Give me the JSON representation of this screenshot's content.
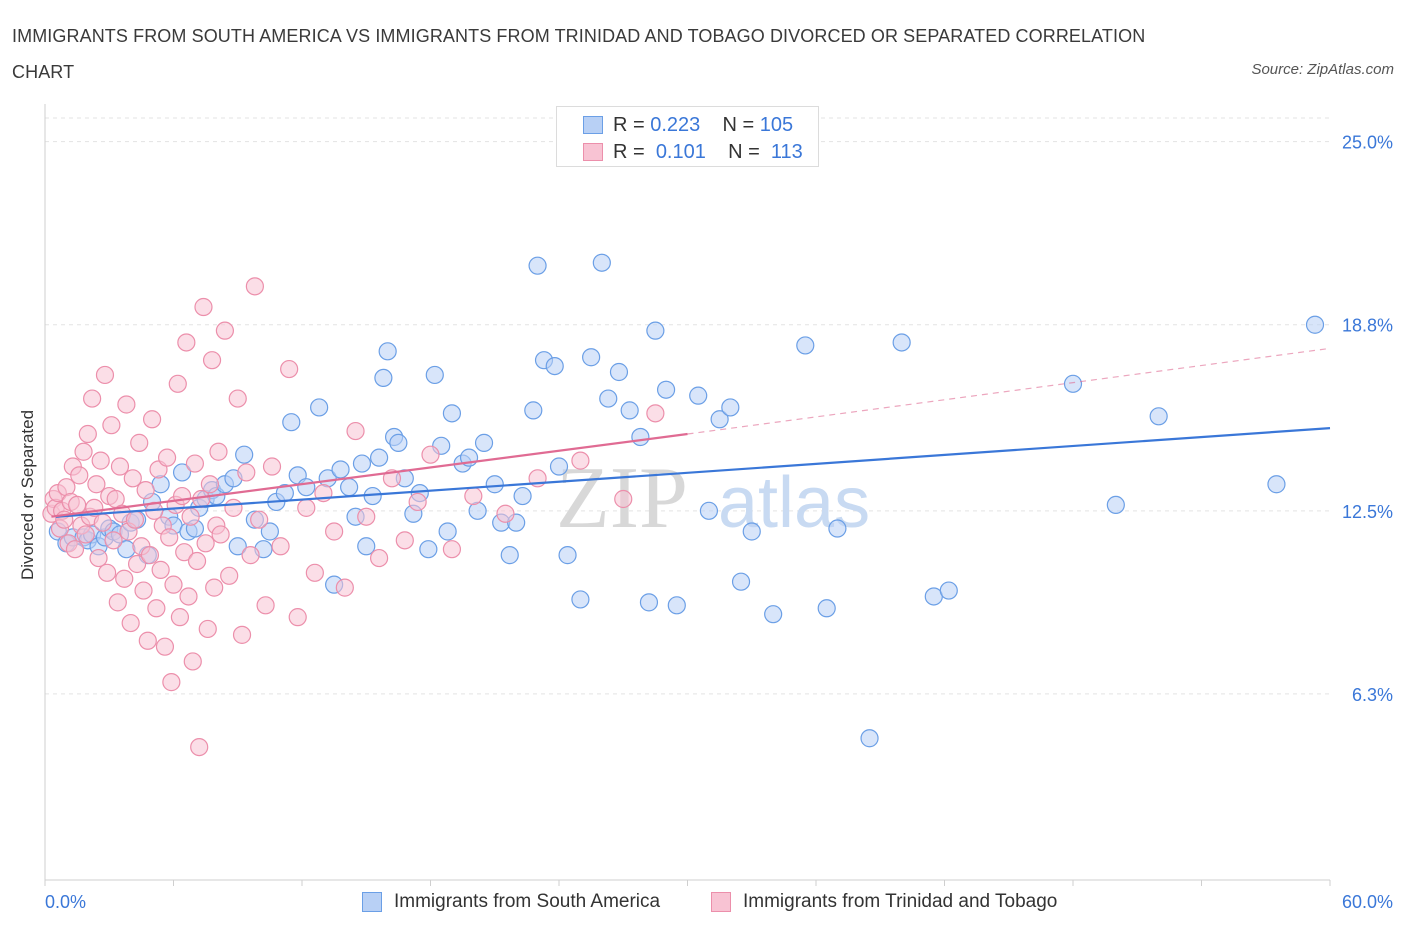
{
  "title": "IMMIGRANTS FROM SOUTH AMERICA VS IMMIGRANTS FROM TRINIDAD AND TOBAGO DIVORCED OR SEPARATED CORRELATION CHART",
  "source": "Source: ZipAtlas.com",
  "watermark": {
    "zip": "ZIP",
    "atlas": "atlas"
  },
  "legend": {
    "r_label": "R =",
    "n_label": "N =",
    "rows": [
      {
        "r": "0.223",
        "n": "105",
        "fill": "#b8d0f5",
        "stroke": "#6b9fe6"
      },
      {
        "r": "0.101",
        "n": "113",
        "fill": "#f8c3d3",
        "stroke": "#ec8fab"
      }
    ]
  },
  "chart_data": {
    "type": "scatter",
    "xlabel": "",
    "ylabel": "Divorced or Separated",
    "xlim": [
      0,
      60
    ],
    "ylim": [
      0,
      25.8
    ],
    "x_tick_labels": [
      {
        "value": 0,
        "label": "0.0%"
      },
      {
        "value": 60,
        "label": "60.0%"
      }
    ],
    "y_tick_labels": [
      {
        "value": 6.3,
        "label": "6.3%"
      },
      {
        "value": 12.5,
        "label": "12.5%"
      },
      {
        "value": 18.8,
        "label": "18.8%"
      },
      {
        "value": 25.0,
        "label": "25.0%"
      }
    ],
    "x_minor_ticks": [
      0,
      6,
      12,
      18,
      24,
      30,
      36,
      42,
      48,
      54,
      60
    ],
    "grid": true,
    "legend_position": "top-center",
    "series": [
      {
        "name": "Immigrants from South America",
        "color": "#3a77d8",
        "fill": "#b8d0f5",
        "stroke": "#6b9fe6",
        "trend": {
          "x0": 0.5,
          "y0": 12.3,
          "x1": 60,
          "y1": 15.3
        },
        "points": [
          [
            0.6,
            11.8
          ],
          [
            1.0,
            11.4
          ],
          [
            1.3,
            11.6
          ],
          [
            1.8,
            11.6
          ],
          [
            2.0,
            11.5
          ],
          [
            2.2,
            11.7
          ],
          [
            2.5,
            11.3
          ],
          [
            2.8,
            11.6
          ],
          [
            3.0,
            11.9
          ],
          [
            3.2,
            11.8
          ],
          [
            3.5,
            11.7
          ],
          [
            3.8,
            11.2
          ],
          [
            4.0,
            12.1
          ],
          [
            4.3,
            12.2
          ],
          [
            4.8,
            11.0
          ],
          [
            5.0,
            12.8
          ],
          [
            5.4,
            13.4
          ],
          [
            5.8,
            12.3
          ],
          [
            6.0,
            12.0
          ],
          [
            6.4,
            13.8
          ],
          [
            6.7,
            11.8
          ],
          [
            7.0,
            11.9
          ],
          [
            7.2,
            12.6
          ],
          [
            7.5,
            12.9
          ],
          [
            7.8,
            13.2
          ],
          [
            8.0,
            13.0
          ],
          [
            8.4,
            13.4
          ],
          [
            8.8,
            13.6
          ],
          [
            9.0,
            11.3
          ],
          [
            9.3,
            14.4
          ],
          [
            9.8,
            12.2
          ],
          [
            10.2,
            11.2
          ],
          [
            10.5,
            11.8
          ],
          [
            10.8,
            12.8
          ],
          [
            11.2,
            13.1
          ],
          [
            11.5,
            15.5
          ],
          [
            11.8,
            13.7
          ],
          [
            12.2,
            13.3
          ],
          [
            12.8,
            16.0
          ],
          [
            13.2,
            13.6
          ],
          [
            13.5,
            10.0
          ],
          [
            13.8,
            13.9
          ],
          [
            14.2,
            13.3
          ],
          [
            14.5,
            12.3
          ],
          [
            14.8,
            14.1
          ],
          [
            15.0,
            11.3
          ],
          [
            15.3,
            13.0
          ],
          [
            15.6,
            14.3
          ],
          [
            15.8,
            17.0
          ],
          [
            16.0,
            17.9
          ],
          [
            16.3,
            15.0
          ],
          [
            16.5,
            14.8
          ],
          [
            16.8,
            13.6
          ],
          [
            17.2,
            12.4
          ],
          [
            17.5,
            13.1
          ],
          [
            17.9,
            11.2
          ],
          [
            18.2,
            17.1
          ],
          [
            18.5,
            14.7
          ],
          [
            18.8,
            11.8
          ],
          [
            19.0,
            15.8
          ],
          [
            19.5,
            14.1
          ],
          [
            19.8,
            14.3
          ],
          [
            20.2,
            12.5
          ],
          [
            20.5,
            14.8
          ],
          [
            21.0,
            13.4
          ],
          [
            21.3,
            12.1
          ],
          [
            21.7,
            11.0
          ],
          [
            22.0,
            12.1
          ],
          [
            22.3,
            13.0
          ],
          [
            22.8,
            15.9
          ],
          [
            23.0,
            20.8
          ],
          [
            23.3,
            17.6
          ],
          [
            23.8,
            17.4
          ],
          [
            24.0,
            14.0
          ],
          [
            24.4,
            11.0
          ],
          [
            25.0,
            9.5
          ],
          [
            25.5,
            17.7
          ],
          [
            26.0,
            20.9
          ],
          [
            26.3,
            16.3
          ],
          [
            26.8,
            17.2
          ],
          [
            27.3,
            15.9
          ],
          [
            27.8,
            15.0
          ],
          [
            28.2,
            9.4
          ],
          [
            28.5,
            18.6
          ],
          [
            29.0,
            16.6
          ],
          [
            29.5,
            9.3
          ],
          [
            30.5,
            16.4
          ],
          [
            31.0,
            12.5
          ],
          [
            31.5,
            15.6
          ],
          [
            32.0,
            16.0
          ],
          [
            32.5,
            10.1
          ],
          [
            33.0,
            11.8
          ],
          [
            34.0,
            9.0
          ],
          [
            35.5,
            18.1
          ],
          [
            36.5,
            9.2
          ],
          [
            37.0,
            11.9
          ],
          [
            38.5,
            4.8
          ],
          [
            40.0,
            18.2
          ],
          [
            41.5,
            9.6
          ],
          [
            42.2,
            9.8
          ],
          [
            48.0,
            16.8
          ],
          [
            50.0,
            12.7
          ],
          [
            52.0,
            15.7
          ],
          [
            57.5,
            13.4
          ],
          [
            59.3,
            18.8
          ]
        ]
      },
      {
        "name": "Immigrants from Trinidad and Tobago",
        "color": "#e06b93",
        "fill": "#f8c3d3",
        "stroke": "#ec8fab",
        "trend": {
          "x0": 0.3,
          "y0": 12.3,
          "x1": 30,
          "y1": 15.1
        },
        "trend_extension": {
          "x0": 30,
          "y0": 15.1,
          "x1": 60,
          "y1": 18.0
        },
        "points": [
          [
            0.3,
            12.4
          ],
          [
            0.4,
            12.9
          ],
          [
            0.5,
            12.6
          ],
          [
            0.6,
            13.1
          ],
          [
            0.7,
            11.9
          ],
          [
            0.8,
            12.5
          ],
          [
            0.9,
            12.2
          ],
          [
            1.0,
            13.3
          ],
          [
            1.1,
            11.4
          ],
          [
            1.2,
            12.8
          ],
          [
            1.3,
            14.0
          ],
          [
            1.4,
            11.2
          ],
          [
            1.5,
            12.7
          ],
          [
            1.6,
            13.7
          ],
          [
            1.7,
            12.0
          ],
          [
            1.8,
            14.5
          ],
          [
            1.9,
            11.7
          ],
          [
            2.0,
            15.1
          ],
          [
            2.1,
            12.3
          ],
          [
            2.2,
            16.3
          ],
          [
            2.3,
            12.6
          ],
          [
            2.4,
            13.4
          ],
          [
            2.5,
            10.9
          ],
          [
            2.6,
            14.2
          ],
          [
            2.7,
            12.1
          ],
          [
            2.8,
            17.1
          ],
          [
            2.9,
            10.4
          ],
          [
            3.0,
            13.0
          ],
          [
            3.1,
            15.4
          ],
          [
            3.2,
            11.5
          ],
          [
            3.3,
            12.9
          ],
          [
            3.4,
            9.4
          ],
          [
            3.5,
            14.0
          ],
          [
            3.6,
            12.4
          ],
          [
            3.7,
            10.2
          ],
          [
            3.8,
            16.1
          ],
          [
            3.9,
            11.8
          ],
          [
            4.0,
            8.7
          ],
          [
            4.1,
            13.6
          ],
          [
            4.2,
            12.2
          ],
          [
            4.3,
            10.7
          ],
          [
            4.4,
            14.8
          ],
          [
            4.5,
            11.3
          ],
          [
            4.6,
            9.8
          ],
          [
            4.7,
            13.2
          ],
          [
            4.8,
            8.1
          ],
          [
            4.9,
            11.0
          ],
          [
            5.0,
            15.6
          ],
          [
            5.1,
            12.5
          ],
          [
            5.2,
            9.2
          ],
          [
            5.3,
            13.9
          ],
          [
            5.4,
            10.5
          ],
          [
            5.5,
            12.0
          ],
          [
            5.6,
            7.9
          ],
          [
            5.7,
            14.3
          ],
          [
            5.8,
            11.6
          ],
          [
            5.9,
            6.7
          ],
          [
            6.0,
            10.0
          ],
          [
            6.1,
            12.7
          ],
          [
            6.2,
            16.8
          ],
          [
            6.3,
            8.9
          ],
          [
            6.4,
            13.0
          ],
          [
            6.5,
            11.1
          ],
          [
            6.6,
            18.2
          ],
          [
            6.7,
            9.6
          ],
          [
            6.8,
            12.3
          ],
          [
            6.9,
            7.4
          ],
          [
            7.0,
            14.1
          ],
          [
            7.1,
            10.8
          ],
          [
            7.2,
            4.5
          ],
          [
            7.3,
            12.9
          ],
          [
            7.4,
            19.4
          ],
          [
            7.5,
            11.4
          ],
          [
            7.6,
            8.5
          ],
          [
            7.7,
            13.4
          ],
          [
            7.8,
            17.6
          ],
          [
            7.9,
            9.9
          ],
          [
            8.0,
            12.0
          ],
          [
            8.1,
            14.5
          ],
          [
            8.2,
            11.7
          ],
          [
            8.4,
            18.6
          ],
          [
            8.6,
            10.3
          ],
          [
            8.8,
            12.6
          ],
          [
            9.0,
            16.3
          ],
          [
            9.2,
            8.3
          ],
          [
            9.4,
            13.8
          ],
          [
            9.6,
            11.0
          ],
          [
            9.8,
            20.1
          ],
          [
            10.0,
            12.2
          ],
          [
            10.3,
            9.3
          ],
          [
            10.6,
            14.0
          ],
          [
            11.0,
            11.3
          ],
          [
            11.4,
            17.3
          ],
          [
            11.8,
            8.9
          ],
          [
            12.2,
            12.6
          ],
          [
            12.6,
            10.4
          ],
          [
            13.0,
            13.1
          ],
          [
            13.5,
            11.8
          ],
          [
            14.0,
            9.9
          ],
          [
            14.5,
            15.2
          ],
          [
            15.0,
            12.3
          ],
          [
            15.6,
            10.9
          ],
          [
            16.2,
            13.6
          ],
          [
            16.8,
            11.5
          ],
          [
            17.4,
            12.8
          ],
          [
            18.0,
            14.4
          ],
          [
            19.0,
            11.2
          ],
          [
            20.0,
            13.0
          ],
          [
            21.5,
            12.4
          ],
          [
            23.0,
            13.6
          ],
          [
            25.0,
            14.2
          ],
          [
            27.0,
            12.9
          ],
          [
            28.5,
            15.8
          ]
        ]
      }
    ]
  }
}
